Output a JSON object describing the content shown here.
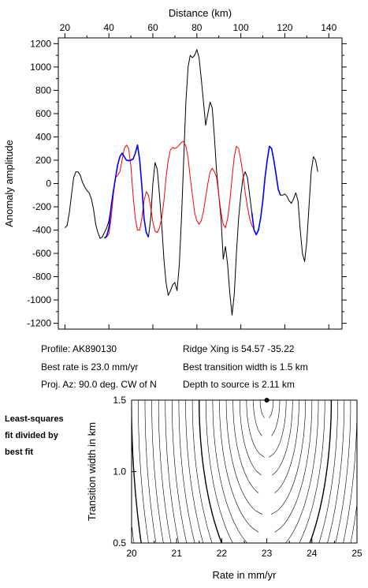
{
  "chart_data": [
    {
      "type": "line",
      "xlabel": "Distance (km)",
      "ylabel": "Anomaly amplitude",
      "xlim": [
        17,
        146
      ],
      "ylim": [
        -1250,
        1250
      ],
      "x_ticks": [
        20,
        40,
        60,
        80,
        100,
        120,
        140
      ],
      "y_ticks": [
        -1200,
        -1000,
        -800,
        -600,
        -400,
        -200,
        0,
        200,
        400,
        600,
        800,
        1000,
        1200
      ],
      "series": [
        {
          "color": "#000000",
          "points": [
            [
              20,
              -380
            ],
            [
              21,
              -360
            ],
            [
              22,
              -250
            ],
            [
              23,
              -100
            ],
            [
              24,
              50
            ],
            [
              25,
              100
            ],
            [
              26,
              100
            ],
            [
              27,
              70
            ],
            [
              28,
              10
            ],
            [
              29,
              -30
            ],
            [
              30,
              -60
            ],
            [
              31,
              -80
            ],
            [
              32,
              -130
            ],
            [
              33,
              -220
            ],
            [
              34,
              -350
            ],
            [
              35,
              -420
            ],
            [
              36,
              -470
            ],
            [
              37,
              -460
            ],
            [
              38,
              -420
            ],
            [
              39,
              -380
            ],
            [
              40,
              -320
            ],
            [
              41,
              -200
            ],
            [
              42,
              -70
            ],
            [
              43,
              50
            ],
            [
              44,
              160
            ],
            [
              45,
              230
            ],
            [
              46,
              260
            ],
            [
              47,
              230
            ],
            [
              48,
              200
            ],
            [
              49,
              200
            ],
            [
              50,
              200
            ],
            [
              51,
              210
            ],
            [
              52,
              260
            ],
            [
              53,
              330
            ],
            [
              54,
              200
            ],
            [
              55,
              -20
            ],
            [
              56,
              -300
            ],
            [
              57,
              -420
            ],
            [
              58,
              -460
            ],
            [
              59,
              -300
            ],
            [
              60,
              0
            ],
            [
              61,
              180
            ],
            [
              62,
              120
            ],
            [
              63,
              -100
            ],
            [
              64,
              -350
            ],
            [
              65,
              -650
            ],
            [
              66,
              -850
            ],
            [
              67,
              -960
            ],
            [
              68,
              -920
            ],
            [
              69,
              -870
            ],
            [
              70,
              -850
            ],
            [
              71,
              -920
            ],
            [
              72,
              -700
            ],
            [
              73,
              -300
            ],
            [
              74,
              200
            ],
            [
              75,
              700
            ],
            [
              76,
              1000
            ],
            [
              77,
              1100
            ],
            [
              78,
              1080
            ],
            [
              79,
              1100
            ],
            [
              80,
              1150
            ],
            [
              81,
              1080
            ],
            [
              82,
              900
            ],
            [
              83,
              700
            ],
            [
              84,
              500
            ],
            [
              85,
              600
            ],
            [
              86,
              700
            ],
            [
              87,
              650
            ],
            [
              88,
              400
            ],
            [
              89,
              100
            ],
            [
              90,
              -100
            ],
            [
              91,
              -300
            ],
            [
              92,
              -650
            ],
            [
              93,
              -540
            ],
            [
              94,
              -700
            ],
            [
              95,
              -950
            ],
            [
              96,
              -1130
            ],
            [
              97,
              -950
            ],
            [
              98,
              -600
            ],
            [
              99,
              -300
            ],
            [
              100,
              -100
            ],
            [
              101,
              50
            ],
            [
              102,
              100
            ],
            [
              103,
              50
            ],
            [
              104,
              -100
            ],
            [
              105,
              -250
            ],
            [
              106,
              -400
            ],
            [
              107,
              -440
            ],
            [
              108,
              -400
            ],
            [
              109,
              -300
            ],
            [
              110,
              -150
            ],
            [
              111,
              50
            ],
            [
              112,
              200
            ],
            [
              113,
              320
            ],
            [
              114,
              300
            ],
            [
              115,
              200
            ],
            [
              116,
              80
            ],
            [
              117,
              -50
            ],
            [
              118,
              -100
            ],
            [
              119,
              -100
            ],
            [
              120,
              -90
            ],
            [
              121,
              -110
            ],
            [
              122,
              -150
            ],
            [
              123,
              -170
            ],
            [
              124,
              -130
            ],
            [
              125,
              -80
            ],
            [
              126,
              -150
            ],
            [
              127,
              -400
            ],
            [
              128,
              -600
            ],
            [
              129,
              -670
            ],
            [
              130,
              -500
            ],
            [
              131,
              -200
            ],
            [
              132,
              100
            ],
            [
              133,
              230
            ],
            [
              134,
              200
            ],
            [
              135,
              100
            ]
          ]
        },
        {
          "color": "#ff0000",
          "points": [
            [
              38,
              -460
            ],
            [
              39,
              -460
            ],
            [
              40,
              -430
            ],
            [
              41,
              -300
            ],
            [
              42,
              -100
            ],
            [
              43,
              50
            ],
            [
              44,
              70
            ],
            [
              45,
              100
            ],
            [
              46,
              200
            ],
            [
              47,
              300
            ],
            [
              48,
              330
            ],
            [
              49,
              300
            ],
            [
              50,
              150
            ],
            [
              51,
              -100
            ],
            [
              52,
              -300
            ],
            [
              53,
              -400
            ],
            [
              54,
              -400
            ],
            [
              55,
              -300
            ],
            [
              56,
              -150
            ],
            [
              57,
              -70
            ],
            [
              58,
              -100
            ],
            [
              59,
              -200
            ],
            [
              60,
              -330
            ],
            [
              61,
              -410
            ],
            [
              62,
              -420
            ],
            [
              63,
              -380
            ],
            [
              64,
              -300
            ],
            [
              65,
              -150
            ],
            [
              66,
              50
            ],
            [
              67,
              200
            ],
            [
              68,
              290
            ],
            [
              69,
              310
            ],
            [
              70,
              300
            ],
            [
              71,
              310
            ],
            [
              72,
              330
            ],
            [
              73,
              355
            ],
            [
              74,
              360
            ],
            [
              75,
              320
            ],
            [
              76,
              220
            ],
            [
              77,
              50
            ],
            [
              78,
              -100
            ],
            [
              79,
              -250
            ],
            [
              80,
              -320
            ],
            [
              81,
              -350
            ],
            [
              82,
              -320
            ],
            [
              83,
              -240
            ],
            [
              84,
              -120
            ],
            [
              85,
              0
            ],
            [
              86,
              100
            ],
            [
              87,
              130
            ],
            [
              88,
              100
            ],
            [
              89,
              50
            ],
            [
              90,
              -100
            ],
            [
              91,
              -250
            ],
            [
              92,
              -350
            ],
            [
              93,
              -380
            ],
            [
              94,
              -300
            ],
            [
              95,
              -150
            ],
            [
              96,
              50
            ],
            [
              97,
              230
            ],
            [
              98,
              320
            ],
            [
              99,
              300
            ],
            [
              100,
              200
            ],
            [
              101,
              80
            ],
            [
              102,
              -80
            ],
            [
              103,
              -200
            ],
            [
              104,
              -300
            ],
            [
              105,
              -360
            ],
            [
              106,
              -390
            ]
          ]
        },
        {
          "color": "#0000ff",
          "points": [
            [
              38,
              -470
            ],
            [
              39,
              -450
            ],
            [
              40,
              -380
            ],
            [
              41,
              -200
            ],
            [
              42,
              -70
            ],
            [
              43,
              50
            ],
            [
              44,
              160
            ],
            [
              45,
              230
            ],
            [
              46,
              260
            ],
            [
              47,
              230
            ],
            [
              48,
              200
            ],
            [
              49,
              195
            ],
            [
              50,
              200
            ],
            [
              51,
              210
            ],
            [
              52,
              260
            ],
            [
              53,
              330
            ],
            [
              54,
              200
            ],
            [
              55,
              -20
            ],
            [
              56,
              -300
            ],
            [
              57,
              -420
            ],
            [
              58,
              -460
            ]
          ]
        },
        {
          "color": "#0000ff",
          "points": [
            [
              105,
              -250
            ],
            [
              106,
              -400
            ],
            [
              107,
              -440
            ],
            [
              108,
              -400
            ],
            [
              109,
              -300
            ],
            [
              110,
              -150
            ],
            [
              111,
              50
            ],
            [
              112,
              200
            ],
            [
              113,
              320
            ],
            [
              114,
              300
            ],
            [
              115,
              200
            ],
            [
              116,
              80
            ],
            [
              117,
              -50
            ],
            [
              118,
              -100
            ]
          ]
        }
      ]
    },
    {
      "type": "contour",
      "xlabel": "Rate in mm/yr",
      "ylabel": "Transition width in km",
      "xlim": [
        20,
        25
      ],
      "ylim": [
        0.5,
        1.5
      ],
      "x_ticks": [
        20,
        21,
        22,
        23,
        24,
        25
      ],
      "y_ticks": [
        0.5,
        1.0,
        1.5
      ],
      "best_fit_marker": {
        "x": 23.0,
        "y": 1.5
      }
    }
  ],
  "info": {
    "profile": "Profile: AK890130",
    "best_rate": "Best rate is 23.0 mm/yr",
    "proj_az": "Proj. Az: 90.0 deg. CW of N",
    "ridge_xing": "Ridge Xing is 54.57 -35.22",
    "best_transition": "Best transition width is 1.5 km",
    "depth_to_source": "Depth to source is   2.11 km"
  },
  "side_note": [
    "Least-squares",
    "fit divided by",
    "best fit"
  ]
}
